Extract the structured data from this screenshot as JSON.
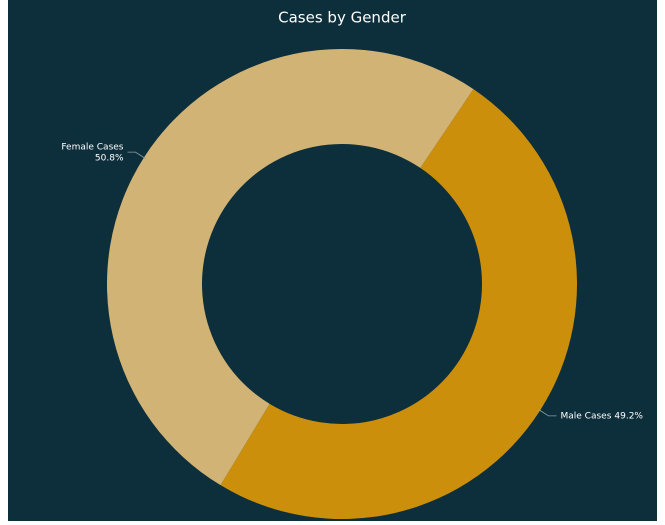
{
  "chart_data": {
    "type": "donut",
    "title": "Cases by Gender",
    "categories": [
      "Male Cases",
      "Female Cases"
    ],
    "values": [
      49.2,
      50.8
    ],
    "value_labels": [
      "49.2%",
      "50.8%"
    ],
    "colors": [
      "#cc8f0c",
      "#d1b475"
    ]
  }
}
